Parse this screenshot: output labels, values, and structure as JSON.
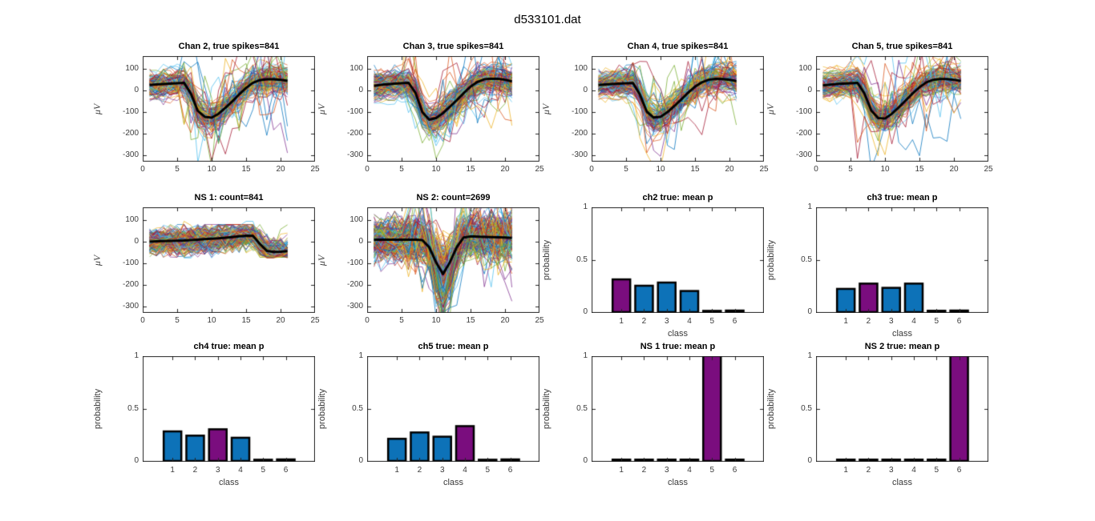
{
  "figure": {
    "title": "d533101.dat",
    "background": "#FFFFFF"
  },
  "colors": {
    "palette": [
      "#0072BD",
      "#D95319",
      "#EDB120",
      "#7E2F8E",
      "#77AC30",
      "#4DBEEE",
      "#A2142F"
    ],
    "bar_blue": "#0D72B8",
    "bar_highlight": "#7A0D7E",
    "mean_line": "#000000",
    "axis_frame": "#262626",
    "tick_text": "#3C3C3C"
  },
  "chart_data": [
    {
      "id": "chan2",
      "type": "line",
      "style": "spike-ensemble",
      "seed": 101,
      "grid": {
        "row": 0,
        "col": 0
      },
      "title": "Chan 2, true spikes=841",
      "count": 841,
      "ylabel": "μV",
      "ylabel_italic": true,
      "xlim": [
        0,
        25
      ],
      "ylim": [
        -330,
        160
      ],
      "xticks": [
        0,
        5,
        10,
        15,
        20,
        25
      ],
      "yticks": [
        -300,
        -200,
        -100,
        0,
        100
      ],
      "x": [
        1,
        2,
        3,
        4,
        5,
        6,
        7,
        8,
        9,
        10,
        11,
        12,
        13,
        14,
        15,
        16,
        17,
        18,
        19,
        20,
        21
      ],
      "mean_series": [
        25,
        28,
        30,
        32,
        34,
        36,
        -15,
        -95,
        -122,
        -126,
        -108,
        -80,
        -50,
        -18,
        12,
        36,
        48,
        52,
        52,
        50,
        45
      ]
    },
    {
      "id": "chan3",
      "type": "line",
      "style": "spike-ensemble",
      "seed": 202,
      "grid": {
        "row": 0,
        "col": 1
      },
      "title": "Chan 3, true spikes=841",
      "count": 841,
      "ylabel": "μV",
      "ylabel_italic": true,
      "xlim": [
        0,
        25
      ],
      "ylim": [
        -330,
        160
      ],
      "xticks": [
        0,
        5,
        10,
        15,
        20,
        25
      ],
      "yticks": [
        -300,
        -200,
        -100,
        0,
        100
      ],
      "x": [
        1,
        2,
        3,
        4,
        5,
        6,
        7,
        8,
        9,
        10,
        11,
        12,
        13,
        14,
        15,
        16,
        17,
        18,
        19,
        20,
        21
      ],
      "mean_series": [
        22,
        26,
        29,
        32,
        34,
        36,
        -10,
        -100,
        -135,
        -128,
        -105,
        -75,
        -45,
        -12,
        18,
        40,
        52,
        55,
        54,
        50,
        42
      ]
    },
    {
      "id": "chan4",
      "type": "line",
      "style": "spike-ensemble",
      "seed": 303,
      "grid": {
        "row": 0,
        "col": 2
      },
      "title": "Chan 4, true spikes=841",
      "count": 841,
      "ylabel": "μV",
      "ylabel_italic": true,
      "xlim": [
        0,
        25
      ],
      "ylim": [
        -330,
        160
      ],
      "xticks": [
        0,
        5,
        10,
        15,
        20,
        25
      ],
      "yticks": [
        -300,
        -200,
        -100,
        0,
        100
      ],
      "x": [
        1,
        2,
        3,
        4,
        5,
        6,
        7,
        8,
        9,
        10,
        11,
        12,
        13,
        14,
        15,
        16,
        17,
        18,
        19,
        20,
        21
      ],
      "mean_series": [
        25,
        28,
        30,
        32,
        34,
        35,
        -18,
        -98,
        -125,
        -122,
        -100,
        -72,
        -42,
        -10,
        18,
        38,
        50,
        54,
        53,
        50,
        44
      ]
    },
    {
      "id": "chan5",
      "type": "line",
      "style": "spike-ensemble",
      "seed": 404,
      "grid": {
        "row": 0,
        "col": 3
      },
      "title": "Chan 5, true spikes=841",
      "count": 841,
      "ylabel": "μV",
      "ylabel_italic": true,
      "xlim": [
        0,
        25
      ],
      "ylim": [
        -330,
        160
      ],
      "xticks": [
        0,
        5,
        10,
        15,
        20,
        25
      ],
      "yticks": [
        -300,
        -200,
        -100,
        0,
        100
      ],
      "x": [
        1,
        2,
        3,
        4,
        5,
        6,
        7,
        8,
        9,
        10,
        11,
        12,
        13,
        14,
        15,
        16,
        17,
        18,
        19,
        20,
        21
      ],
      "mean_series": [
        24,
        27,
        30,
        32,
        34,
        36,
        -12,
        -92,
        -128,
        -130,
        -108,
        -78,
        -46,
        -14,
        15,
        38,
        50,
        53,
        53,
        50,
        44
      ]
    },
    {
      "id": "ns1",
      "type": "line",
      "style": "flat-ensemble",
      "seed": 505,
      "grid": {
        "row": 1,
        "col": 0
      },
      "title": "NS 1: count=841",
      "count": 841,
      "ylabel": "μV",
      "ylabel_italic": true,
      "xlim": [
        0,
        25
      ],
      "ylim": [
        -330,
        160
      ],
      "xticks": [
        0,
        5,
        10,
        15,
        20,
        25
      ],
      "yticks": [
        -300,
        -200,
        -100,
        0,
        100
      ],
      "x": [
        1,
        2,
        3,
        4,
        5,
        6,
        7,
        8,
        9,
        10,
        11,
        12,
        13,
        14,
        15,
        16,
        17,
        18,
        19,
        20,
        21
      ],
      "mean_series": [
        0,
        2,
        3,
        4,
        5,
        6,
        8,
        10,
        12,
        14,
        16,
        19,
        22,
        25,
        28,
        27,
        -10,
        -42,
        -47,
        -46,
        -43
      ]
    },
    {
      "id": "ns2",
      "type": "line",
      "style": "dense-ensemble",
      "seed": 606,
      "grid": {
        "row": 1,
        "col": 1
      },
      "title": "NS 2: count=2699",
      "count": 2699,
      "ylabel": "μV",
      "ylabel_italic": true,
      "xlim": [
        0,
        25
      ],
      "ylim": [
        -330,
        160
      ],
      "xticks": [
        0,
        5,
        10,
        15,
        20,
        25
      ],
      "yticks": [
        -300,
        -200,
        -100,
        0,
        100
      ],
      "x": [
        1,
        2,
        3,
        4,
        5,
        6,
        7,
        8,
        9,
        10,
        11,
        12,
        13,
        14,
        15,
        16,
        17,
        18,
        19,
        20,
        21
      ],
      "mean_series": [
        10,
        10,
        10,
        10,
        10,
        10,
        10,
        8,
        -25,
        -95,
        -150,
        -95,
        -25,
        20,
        25,
        24,
        23,
        22,
        21,
        20,
        18
      ]
    },
    {
      "id": "ch2-true",
      "type": "bar",
      "grid": {
        "row": 1,
        "col": 2
      },
      "title": "ch2 true: mean p",
      "xlabel": "class",
      "ylabel": "probability",
      "categories": [
        "1",
        "2",
        "3",
        "4",
        "5",
        "6"
      ],
      "values": [
        0.31,
        0.25,
        0.28,
        0.2,
        0.012,
        0.015
      ],
      "highlight_class": 1,
      "ylim": [
        0,
        1
      ],
      "yticks": [
        0,
        0.5,
        1
      ]
    },
    {
      "id": "ch3-true",
      "type": "bar",
      "grid": {
        "row": 1,
        "col": 3
      },
      "title": "ch3 true: mean p",
      "xlabel": "class",
      "ylabel": "probability",
      "categories": [
        "1",
        "2",
        "3",
        "4",
        "5",
        "6"
      ],
      "values": [
        0.22,
        0.27,
        0.23,
        0.27,
        0.013,
        0.015
      ],
      "highlight_class": 2,
      "ylim": [
        0,
        1
      ],
      "yticks": [
        0,
        0.5,
        1
      ]
    },
    {
      "id": "ch4-true",
      "type": "bar",
      "grid": {
        "row": 2,
        "col": 0
      },
      "title": "ch4 true: mean p",
      "xlabel": "class",
      "ylabel": "probability",
      "categories": [
        "1",
        "2",
        "3",
        "4",
        "5",
        "6"
      ],
      "values": [
        0.28,
        0.24,
        0.3,
        0.22,
        0.012,
        0.015
      ],
      "highlight_class": 3,
      "ylim": [
        0,
        1
      ],
      "yticks": [
        0,
        0.5,
        1
      ]
    },
    {
      "id": "ch5-true",
      "type": "bar",
      "grid": {
        "row": 2,
        "col": 1
      },
      "title": "ch5 true: mean p",
      "xlabel": "class",
      "ylabel": "probability",
      "categories": [
        "1",
        "2",
        "3",
        "4",
        "5",
        "6"
      ],
      "values": [
        0.21,
        0.27,
        0.23,
        0.33,
        0.012,
        0.015
      ],
      "highlight_class": 4,
      "ylim": [
        0,
        1
      ],
      "yticks": [
        0,
        0.5,
        1
      ]
    },
    {
      "id": "ns1-true",
      "type": "bar",
      "grid": {
        "row": 2,
        "col": 2
      },
      "title": "NS 1 true: mean p",
      "xlabel": "class",
      "ylabel": "probability",
      "categories": [
        "1",
        "2",
        "3",
        "4",
        "5",
        "6"
      ],
      "values": [
        0.013,
        0.013,
        0.013,
        0.013,
        1.0,
        0.013
      ],
      "highlight_class": 5,
      "ylim": [
        0,
        1
      ],
      "yticks": [
        0,
        0.5,
        1
      ]
    },
    {
      "id": "ns2-true",
      "type": "bar",
      "grid": {
        "row": 2,
        "col": 3
      },
      "title": "NS 2 true: mean p",
      "xlabel": "class",
      "ylabel": "probability",
      "categories": [
        "1",
        "2",
        "3",
        "4",
        "5",
        "6"
      ],
      "values": [
        0.013,
        0.013,
        0.013,
        0.013,
        0.013,
        1.0
      ],
      "highlight_class": 6,
      "ylim": [
        0,
        1
      ],
      "yticks": [
        0,
        0.5,
        1
      ]
    }
  ]
}
